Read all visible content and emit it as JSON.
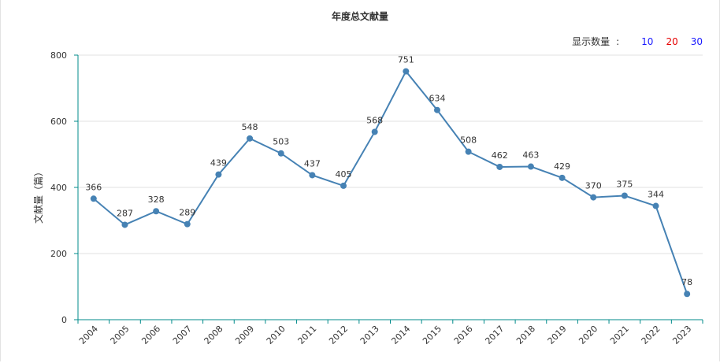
{
  "header": {
    "title": "年度总文献量",
    "count_label": "显示数量",
    "count_sep": ":",
    "count_options": [
      "10",
      "20",
      "30"
    ]
  },
  "colors": {
    "line": "#4682b4",
    "axis": "#008b8b",
    "grid": "#e0e0e0"
  },
  "chart_data": {
    "type": "line",
    "title": "年度总文献量",
    "xlabel": "",
    "ylabel": "文献量（篇）",
    "categories": [
      "2004",
      "2005",
      "2006",
      "2007",
      "2008",
      "2009",
      "2010",
      "2011",
      "2012",
      "2013",
      "2014",
      "2015",
      "2016",
      "2017",
      "2018",
      "2019",
      "2020",
      "2021",
      "2022",
      "2023"
    ],
    "series": [
      {
        "values": [
          366,
          287,
          328,
          289,
          439,
          548,
          503,
          437,
          405,
          568,
          751,
          634,
          508,
          462,
          463,
          429,
          370,
          375,
          344,
          78
        ]
      }
    ],
    "ylim": [
      0,
      800
    ],
    "yticks": [
      0,
      200,
      400,
      600,
      800
    ],
    "grid": true,
    "data_labels": true
  }
}
